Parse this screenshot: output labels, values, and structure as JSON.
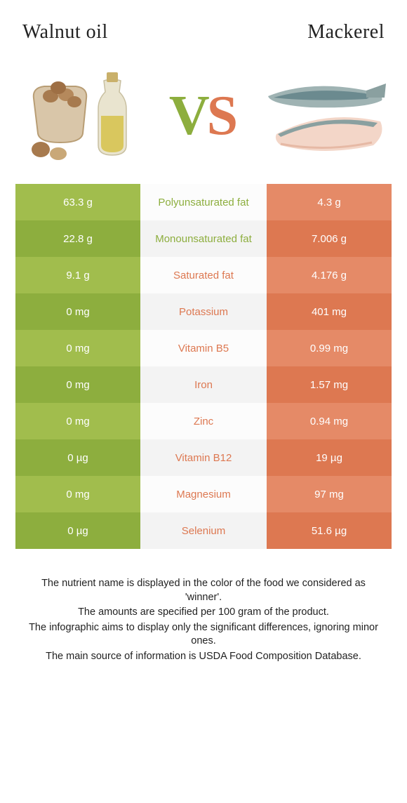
{
  "colors": {
    "left_light": "#a1bd4d",
    "left_dark": "#8dae3e",
    "right_light": "#e58a67",
    "right_dark": "#dd7851",
    "mid_light": "#fcfcfc",
    "mid_dark": "#f3f3f3",
    "vs_left": "#8dae3e",
    "vs_right": "#dd7851"
  },
  "header": {
    "left_title": "Walnut oil",
    "right_title": "Mackerel",
    "vs_v": "V",
    "vs_s": "S"
  },
  "rows": [
    {
      "left": "63.3 g",
      "label": "Polyunsaturated fat",
      "right": "4.3 g",
      "winner": "left"
    },
    {
      "left": "22.8 g",
      "label": "Monounsaturated fat",
      "right": "7.006 g",
      "winner": "left"
    },
    {
      "left": "9.1 g",
      "label": "Saturated fat",
      "right": "4.176 g",
      "winner": "right"
    },
    {
      "left": "0 mg",
      "label": "Potassium",
      "right": "401 mg",
      "winner": "right"
    },
    {
      "left": "0 mg",
      "label": "Vitamin B5",
      "right": "0.99 mg",
      "winner": "right"
    },
    {
      "left": "0 mg",
      "label": "Iron",
      "right": "1.57 mg",
      "winner": "right"
    },
    {
      "left": "0 mg",
      "label": "Zinc",
      "right": "0.94 mg",
      "winner": "right"
    },
    {
      "left": "0 µg",
      "label": "Vitamin B12",
      "right": "19 µg",
      "winner": "right"
    },
    {
      "left": "0 mg",
      "label": "Magnesium",
      "right": "97 mg",
      "winner": "right"
    },
    {
      "left": "0 µg",
      "label": "Selenium",
      "right": "51.6 µg",
      "winner": "right"
    }
  ],
  "footer": {
    "line1": "The nutrient name is displayed in the color of the food we considered as 'winner'.",
    "line2": "The amounts are specified per 100 gram of the product.",
    "line3": "The infographic aims to display only the significant differences, ignoring minor ones.",
    "line4": "The main source of information is USDA Food Composition Database."
  }
}
